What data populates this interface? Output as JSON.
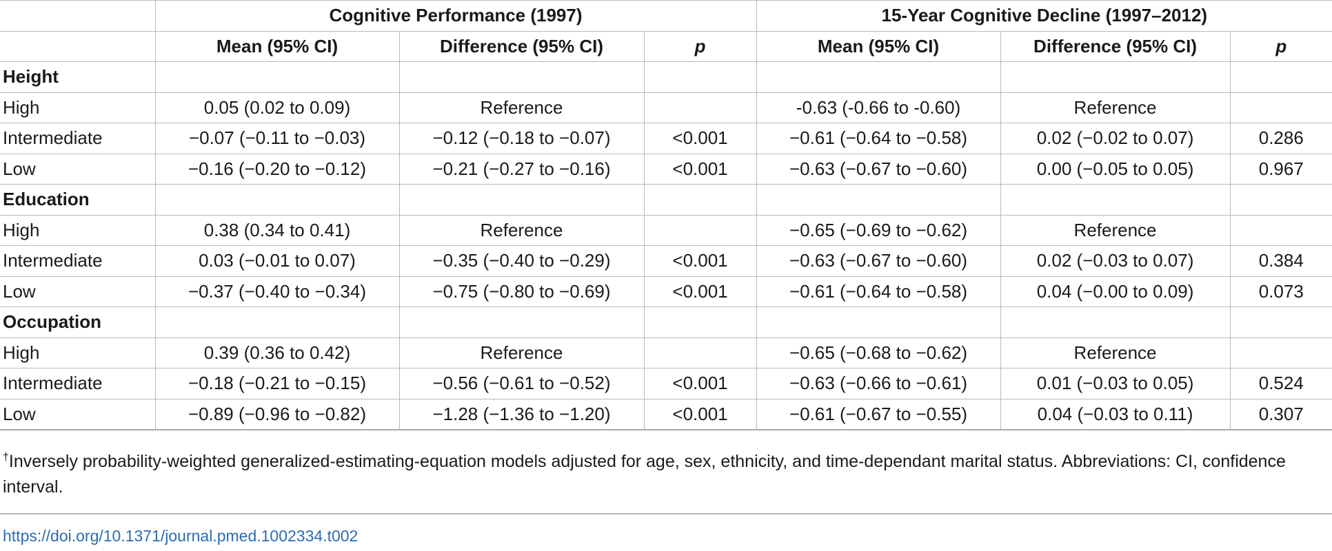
{
  "table": {
    "header": {
      "group_left": "Cognitive Performance (1997)",
      "group_right": "15-Year Cognitive Decline (1997–2012)",
      "columns": [
        "Mean (95% CI)",
        "Difference (95% CI)",
        "p",
        "Mean (95% CI)",
        "Difference (95% CI)",
        "p"
      ]
    },
    "sections": [
      {
        "name": "Height",
        "rows": [
          {
            "label": "High",
            "cells": [
              "0.05 (0.02 to 0.09)",
              "Reference",
              "",
              "-0.63 (-0.66 to -0.60)",
              "Reference",
              ""
            ]
          },
          {
            "label": "Intermediate",
            "cells": [
              "−0.07 (−0.11 to −0.03)",
              "−0.12 (−0.18 to −0.07)",
              "<0.001",
              "−0.61 (−0.64 to −0.58)",
              "0.02 (−0.02 to 0.07)",
              "0.286"
            ]
          },
          {
            "label": "Low",
            "cells": [
              "−0.16 (−0.20 to −0.12)",
              "−0.21 (−0.27 to −0.16)",
              "<0.001",
              "−0.63 (−0.67 to −0.60)",
              "0.00 (−0.05 to 0.05)",
              "0.967"
            ]
          }
        ]
      },
      {
        "name": "Education",
        "rows": [
          {
            "label": "High",
            "cells": [
              "0.38 (0.34 to 0.41)",
              "Reference",
              "",
              "−0.65 (−0.69 to −0.62)",
              "Reference",
              ""
            ]
          },
          {
            "label": "Intermediate",
            "cells": [
              "0.03 (−0.01 to 0.07)",
              "−0.35 (−0.40 to −0.29)",
              "<0.001",
              "−0.63 (−0.67 to −0.60)",
              "0.02 (−0.03 to 0.07)",
              "0.384"
            ]
          },
          {
            "label": "Low",
            "cells": [
              "−0.37 (−0.40 to −0.34)",
              "−0.75 (−0.80 to −0.69)",
              "<0.001",
              "−0.61 (−0.64 to −0.58)",
              "0.04 (−0.00 to 0.09)",
              "0.073"
            ]
          }
        ]
      },
      {
        "name": "Occupation",
        "rows": [
          {
            "label": "High",
            "cells": [
              "0.39 (0.36 to 0.42)",
              "Reference",
              "",
              "−0.65 (−0.68 to −0.62)",
              "Reference",
              ""
            ]
          },
          {
            "label": "Intermediate",
            "cells": [
              "−0.18 (−0.21 to −0.15)",
              "−0.56 (−0.61 to −0.52)",
              "<0.001",
              "−0.63 (−0.66 to −0.61)",
              "0.01 (−0.03 to 0.05)",
              "0.524"
            ]
          },
          {
            "label": "Low",
            "cells": [
              "−0.89 (−0.96 to −0.82)",
              "−1.28 (−1.36 to −1.20)",
              "<0.001",
              "−0.61 (−0.67 to −0.55)",
              "0.04 (−0.03 to 0.11)",
              "0.307"
            ]
          }
        ]
      }
    ]
  },
  "footnote": {
    "marker": "†",
    "text": "Inversely probability-weighted generalized-estimating-equation models adjusted for age, sex, ethnicity, and time-dependant marital status. Abbreviations: CI, confidence interval."
  },
  "doi": {
    "text": "https://doi.org/10.1371/journal.pmed.1002334.t002",
    "color": "#2a6cb3"
  }
}
